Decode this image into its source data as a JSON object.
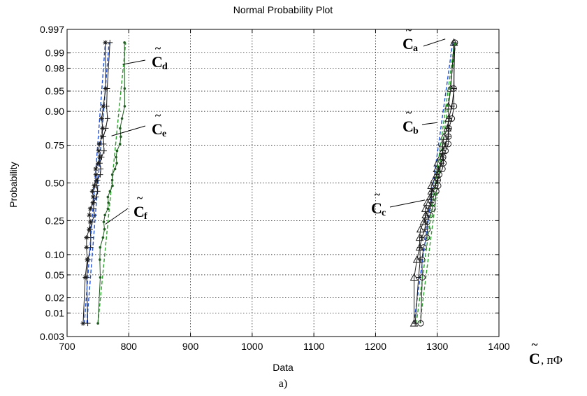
{
  "chart_data": {
    "type": "normal-probability-plot",
    "title": "Normal Probability Plot",
    "xlabel": "Data",
    "ylabel": "Probability",
    "caption": "a)",
    "unit_label": "C, пФ",
    "unit_symbol": "C",
    "unit_suffix": ", пФ",
    "xlim": [
      700,
      1400
    ],
    "x_ticks": [
      700,
      800,
      900,
      1000,
      1100,
      1200,
      1300,
      1400
    ],
    "y_scale": "normal-probability",
    "y_ticks": [
      0.003,
      0.01,
      0.02,
      0.05,
      0.1,
      0.25,
      0.5,
      0.75,
      0.9,
      0.95,
      0.98,
      0.99,
      0.997
    ],
    "y_tick_labels": [
      "0.003",
      "0.01",
      "0.02",
      "0.05",
      "0.10",
      "0.25",
      "0.50",
      "0.75",
      "0.90",
      "0.95",
      "0.98",
      "0.99",
      "0.997"
    ],
    "grid": true,
    "series": [
      {
        "name": "Cd",
        "label_main": "C",
        "label_sub": "d",
        "x_start": 750,
        "x_end": 795,
        "marker": "dot",
        "color": "#1f5c1f",
        "fit_color": "#2ca02c"
      },
      {
        "name": "Ce",
        "label_main": "C",
        "label_sub": "e",
        "x_start": 732,
        "x_end": 768,
        "marker": "plus",
        "color": "#1a1a1a",
        "fit_color": "#1f4fd6"
      },
      {
        "name": "Cf",
        "label_main": "C",
        "label_sub": "f",
        "x_start": 728,
        "x_end": 762,
        "marker": "star",
        "color": "#1a1a1a",
        "fit_color": "#1f4fd6"
      },
      {
        "name": "Ca",
        "label_main": "C",
        "label_sub": "a",
        "x_start": 1272,
        "x_end": 1330,
        "marker": "circle",
        "color": "#1a1a1a",
        "fit_color": "#2ca02c"
      },
      {
        "name": "Cb",
        "label_main": "C",
        "label_sub": "b",
        "x_start": 1262,
        "x_end": 1325,
        "marker": "triangle",
        "color": "#1a1a1a",
        "fit_color": "#1f4fd6"
      },
      {
        "name": "Cc",
        "label_main": "C",
        "label_sub": "c",
        "x_start": 1266,
        "x_end": 1328,
        "marker": "plus",
        "color": "#1a1a1a",
        "fit_color": "#2ca02c"
      }
    ],
    "annotations": [
      {
        "series": "Cd",
        "target_x": 790,
        "target_p": 0.983
      },
      {
        "series": "Ce",
        "target_x": 772,
        "target_p": 0.8
      },
      {
        "series": "Cf",
        "target_x": 762,
        "target_p": 0.23
      },
      {
        "series": "Ca",
        "target_x": 1313,
        "target_p": 0.995
      },
      {
        "series": "Cb",
        "target_x": 1300,
        "target_p": 0.86
      },
      {
        "series": "Cc",
        "target_x": 1280,
        "target_p": 0.38
      }
    ]
  }
}
